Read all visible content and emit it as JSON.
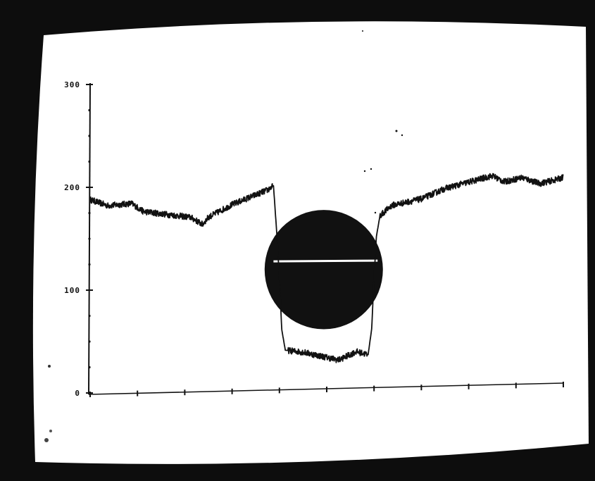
{
  "chart_data": {
    "type": "line",
    "title": "",
    "xlabel": "",
    "ylabel": "",
    "ylim": [
      0,
      300
    ],
    "y_ticks": [
      {
        "value": 0,
        "label": "0"
      },
      {
        "value": 100,
        "label": "100"
      },
      {
        "value": 200,
        "label": "200"
      },
      {
        "value": 300,
        "label": "300"
      }
    ],
    "x_tick_count": 10,
    "grid": false,
    "legend": "none",
    "series": [
      {
        "samples_per_unit": 20,
        "profile_knots": [
          [
            0,
            188
          ],
          [
            30,
            182
          ],
          [
            70,
            184
          ],
          [
            90,
            176
          ],
          [
            130,
            173
          ],
          [
            170,
            170
          ],
          [
            190,
            163
          ],
          [
            200,
            170
          ],
          [
            240,
            182
          ],
          [
            300,
            196
          ],
          [
            310,
            200
          ],
          [
            316,
            150
          ],
          [
            320,
            110
          ],
          [
            324,
            60
          ],
          [
            330,
            40
          ],
          [
            360,
            38
          ],
          [
            390,
            34
          ],
          [
            420,
            30
          ],
          [
            450,
            38
          ],
          [
            470,
            35
          ],
          [
            476,
            60
          ],
          [
            480,
            110
          ],
          [
            484,
            150
          ],
          [
            490,
            170
          ],
          [
            510,
            180
          ],
          [
            560,
            186
          ],
          [
            600,
            196
          ],
          [
            640,
            202
          ],
          [
            680,
            208
          ],
          [
            700,
            202
          ],
          [
            730,
            206
          ],
          [
            760,
            200
          ],
          [
            790,
            204
          ],
          [
            800,
            206
          ]
        ],
        "noise_amplitude": 3
      }
    ],
    "overlay_disc": {
      "center_y": 120,
      "radius_y": 58,
      "center_x_unit": 395,
      "radius_x_unit": 100,
      "divider_y": 128,
      "fill": "#111111",
      "divider_color": "#ffffff"
    },
    "colors": {
      "line": "#111111",
      "background": "#ffffff",
      "frame": "#0d0d0d"
    }
  }
}
